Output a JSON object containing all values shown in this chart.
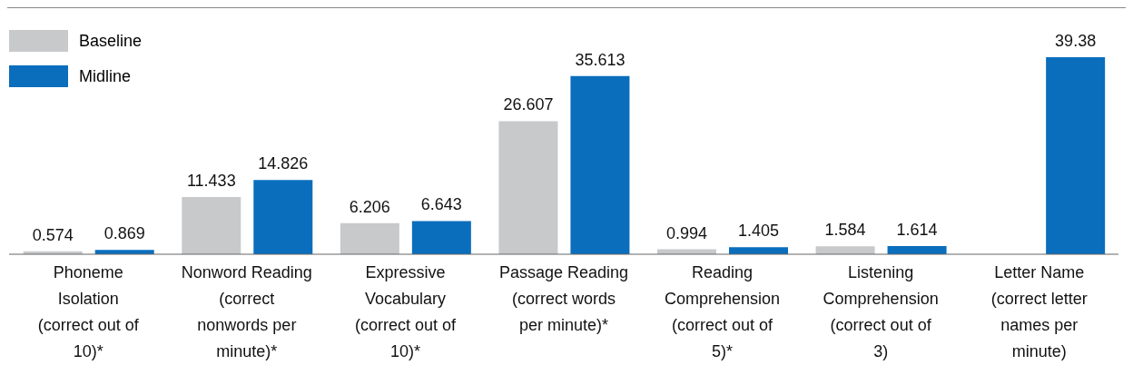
{
  "chart_data": {
    "type": "bar",
    "categories": [
      "Phoneme Isolation (correct out of 10)*",
      "Nonword Reading (correct nonwords per minute)*",
      "Expressive Vocabulary (correct out of 10)*",
      "Passage Reading (correct words per minute)*",
      "Reading Comprehension (correct out of 5)*",
      "Listening Comprehension (correct out of 3)",
      "Letter Name (correct letter names per minute)"
    ],
    "series": [
      {
        "name": "Baseline",
        "color": "#c8c9cb",
        "values": [
          0.574,
          11.433,
          6.206,
          26.607,
          0.994,
          1.584,
          null
        ]
      },
      {
        "name": "Midline",
        "color": "#0a6ebd",
        "values": [
          0.869,
          14.826,
          6.643,
          35.613,
          1.405,
          1.614,
          39.38
        ]
      }
    ],
    "data_labels": true,
    "legend": "top left"
  }
}
